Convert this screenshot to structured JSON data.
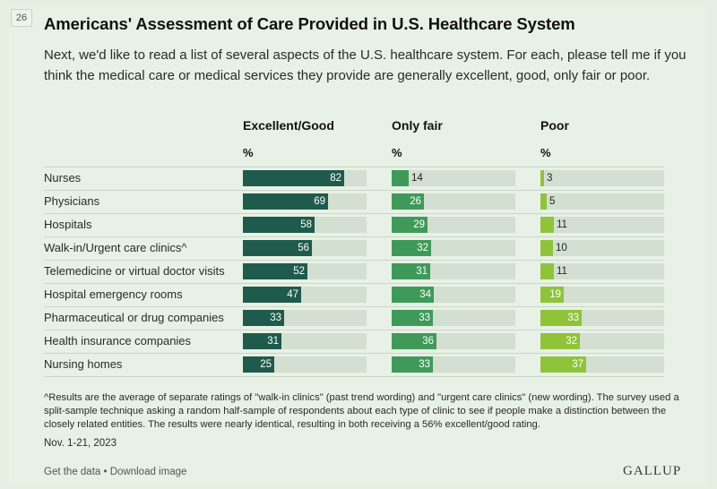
{
  "page_number": "26",
  "title": "Americans' Assessment of Care Provided in U.S. Healthcare System",
  "subtitle": "Next, we'd like to read a list of several aspects of the U.S. healthcare system. For each, please tell me if you think the medical care or medical services they provide are generally excellent, good, only fair or poor.",
  "colors": {
    "excellent_good": "#1f5b4c",
    "only_fair": "#3f9a5a",
    "poor": "#8fc43a",
    "track": "#d3dfd0"
  },
  "chart_data": {
    "type": "bar",
    "orientation": "horizontal",
    "unit": "%",
    "categories": [
      "Nurses",
      "Physicians",
      "Hospitals",
      "Walk-in/Urgent care clinics^",
      "Telemedicine or virtual doctor visits",
      "Hospital emergency rooms",
      "Pharmaceutical or drug companies",
      "Health insurance companies",
      "Nursing homes"
    ],
    "series": [
      {
        "name": "Excellent/Good",
        "unit": "%",
        "values": [
          82,
          69,
          58,
          56,
          52,
          47,
          33,
          31,
          25
        ]
      },
      {
        "name": "Only fair",
        "unit": "%",
        "values": [
          14,
          26,
          29,
          32,
          31,
          34,
          33,
          36,
          33
        ]
      },
      {
        "name": "Poor",
        "unit": "%",
        "values": [
          3,
          5,
          11,
          10,
          11,
          19,
          33,
          32,
          37
        ]
      }
    ],
    "xlim": [
      0,
      100
    ]
  },
  "footnote": "^Results are the average of separate ratings of \"walk-in clinics\" (past trend wording) and \"urgent care clinics\" (new wording). The survey used a split-sample technique asking a random half-sample of respondents about each type of clinic to see if people make a distinction between the closely related entities. The results were nearly identical, resulting in both receiving a 56% excellent/good rating.",
  "date": "Nov. 1-21, 2023",
  "links": {
    "get_data": "Get the data",
    "separator": " • ",
    "download": "Download image"
  },
  "logo": "GALLUP"
}
